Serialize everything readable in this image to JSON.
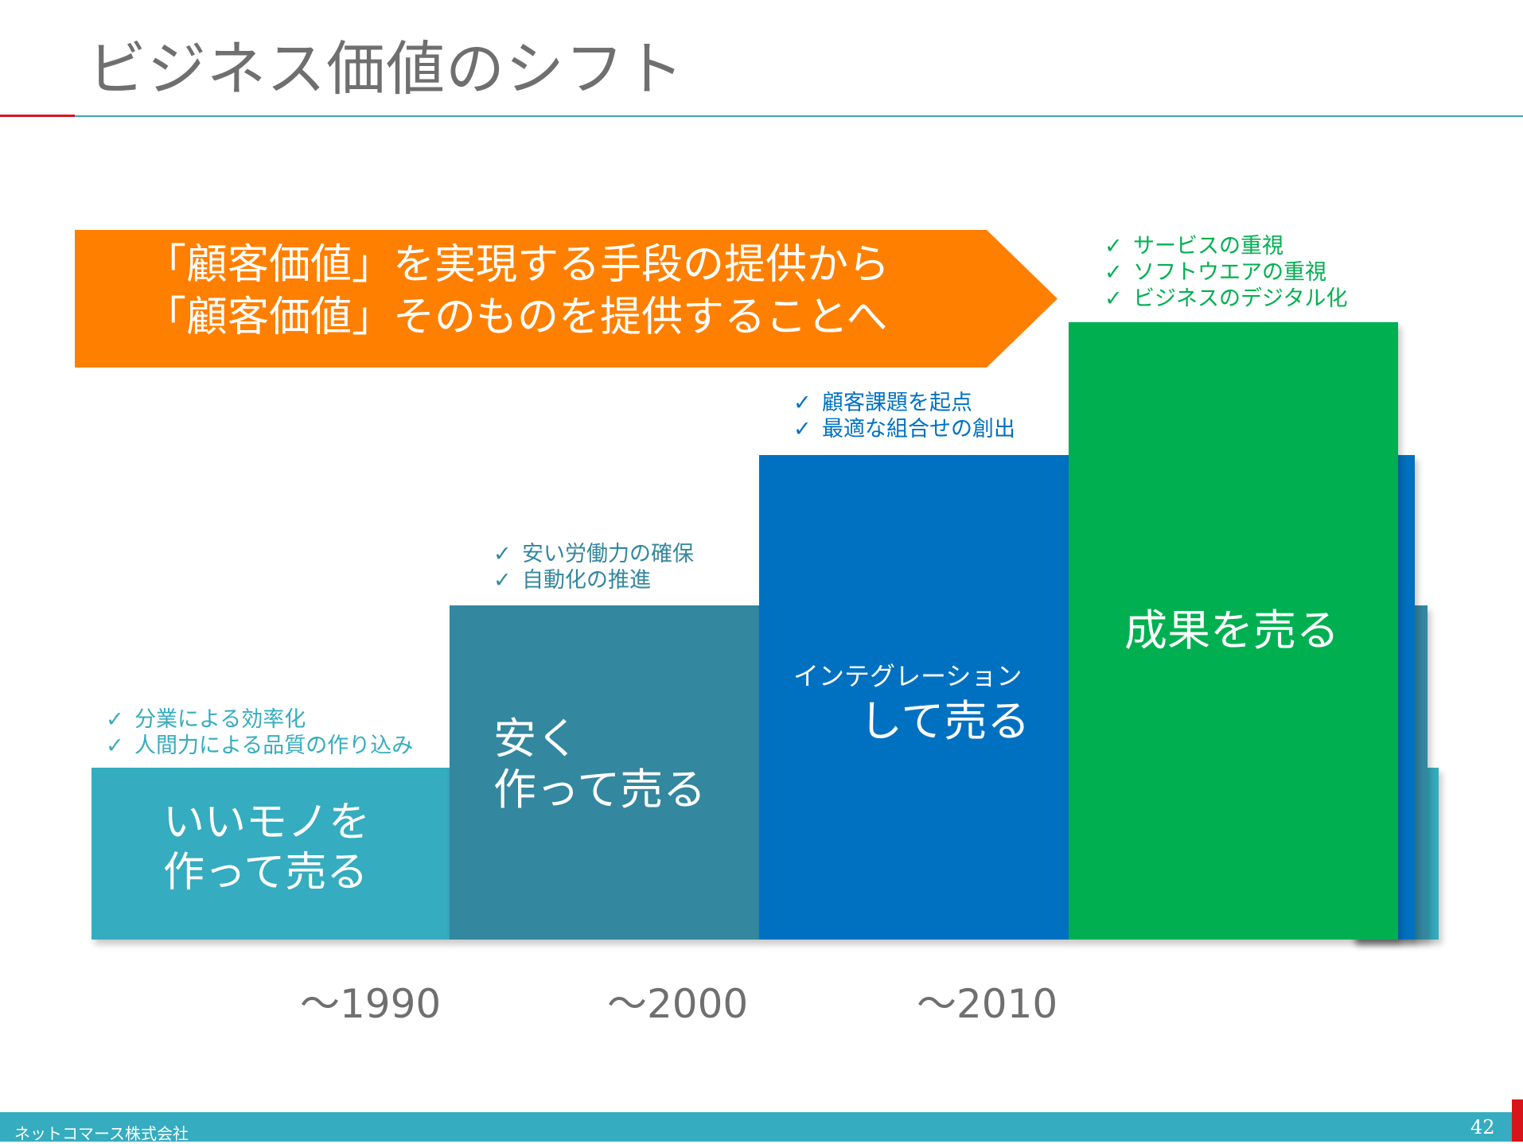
{
  "title": "ビジネス価値のシフト",
  "banner": {
    "line1": "「顧客価値」を実現する手段の提供から",
    "line2": "「顧客価値」そのものを提供することへ"
  },
  "steps": [
    {
      "label_line1": "いいモノを",
      "label_line2": "作って売る",
      "checks": [
        "分業による効率化",
        "人間力による品質の作り込み"
      ],
      "color": "#35acbf"
    },
    {
      "label_line1": "安く",
      "label_line2": "作って売る",
      "checks": [
        "安い労働力の確保",
        "自動化の推進"
      ],
      "color": "#33879f"
    },
    {
      "label_line1": "インテグレーション",
      "label_line2": "して売る",
      "checks": [
        "顧客課題を起点",
        "最適な組合せの創出"
      ],
      "color": "#0071c1"
    },
    {
      "label_line1": "成果を売る",
      "checks": [
        "サービスの重視",
        "ソフトウエアの重視",
        "ビジネスのデジタル化"
      ],
      "color": "#00b050"
    }
  ],
  "check_mark": "✓",
  "years": [
    "～1990",
    "～2000",
    "～2010"
  ],
  "footer": {
    "company": "ネットコマース株式会社",
    "page": "42"
  },
  "colors": {
    "banner": "#ff8000",
    "accent_red": "#d8141b",
    "title": "#6f6f6f"
  }
}
